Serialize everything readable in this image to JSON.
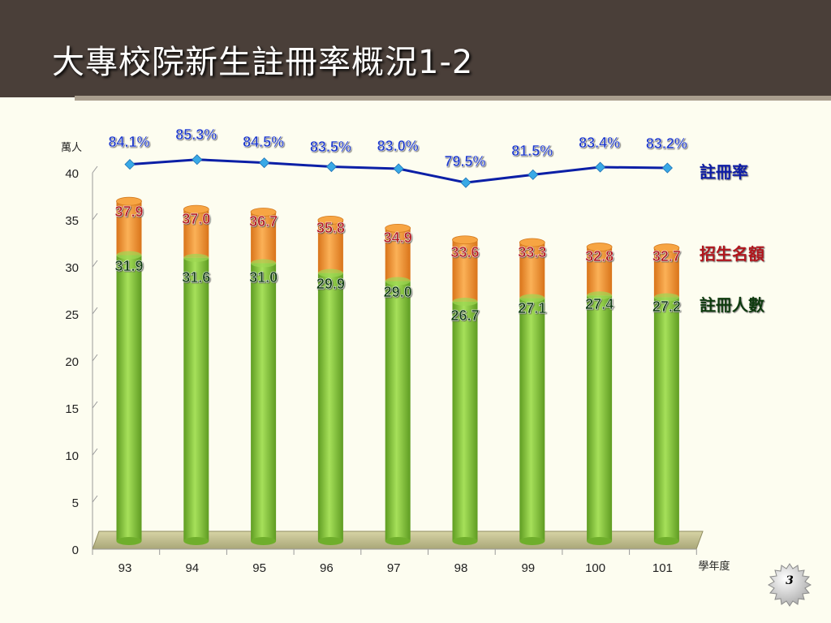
{
  "slide": {
    "title": "大專校院新生註冊率概況1-2",
    "page_number": "3"
  },
  "colors": {
    "header_bg": "#4a3f39",
    "bar_green": "#8fd143",
    "bar_orange": "#f39a2b",
    "line_blue": "#0b1fa6",
    "marker": "#39a9e6",
    "pct_label": "#1a37c9",
    "quota_label": "#b0121e",
    "enrolled_label": "#0f3b10"
  },
  "chart_data": {
    "type": "bar",
    "title": "",
    "ylabel": "萬人",
    "xlabel": "學年度",
    "ylim": [
      0,
      40
    ],
    "yticks": [
      "0",
      "5",
      "10",
      "15",
      "20",
      "25",
      "30",
      "35",
      "40"
    ],
    "categories": [
      "93",
      "94",
      "95",
      "96",
      "97",
      "98",
      "99",
      "100",
      "101"
    ],
    "series": [
      {
        "name": "註冊人數",
        "values": [
          31.9,
          31.6,
          31.0,
          29.9,
          29.0,
          26.7,
          27.1,
          27.4,
          27.2
        ],
        "labels": [
          "31.9",
          "31.6",
          "31.0",
          "29.9",
          "29.0",
          "26.7",
          "27.1",
          "27.4",
          "27.2"
        ]
      },
      {
        "name": "招生名額",
        "values": [
          37.9,
          37.0,
          36.7,
          35.8,
          34.9,
          33.6,
          33.3,
          32.8,
          32.7
        ],
        "labels": [
          "37.9",
          "37.0",
          "36.7",
          "35.8",
          "34.9",
          "33.6",
          "33.3",
          "32.8",
          "32.7"
        ]
      },
      {
        "name": "註冊率",
        "type": "line",
        "values": [
          84.1,
          85.3,
          84.5,
          83.5,
          83.0,
          79.5,
          81.5,
          83.4,
          83.2
        ],
        "labels": [
          "84.1%",
          "85.3%",
          "84.5%",
          "83.5%",
          "83.0%",
          "79.5%",
          "81.5%",
          "83.4%",
          "83.2%"
        ]
      }
    ],
    "grid": false,
    "legend_position": "right"
  }
}
